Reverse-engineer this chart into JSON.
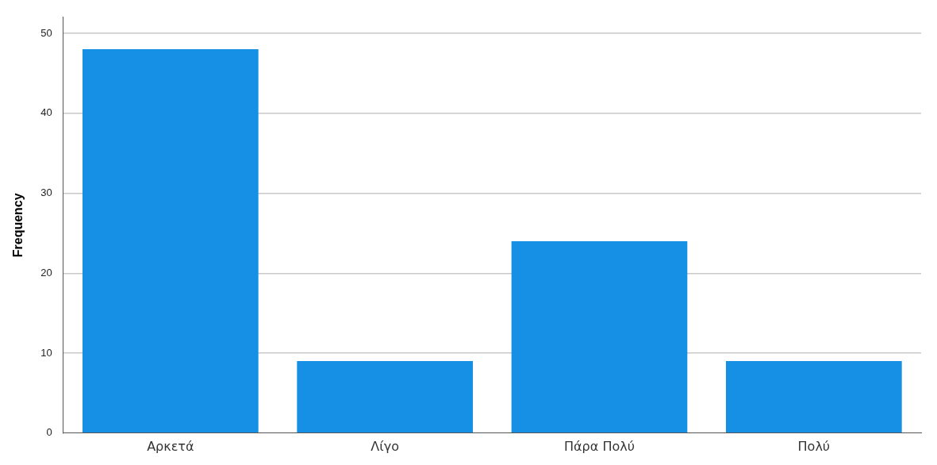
{
  "chart_data": {
    "type": "bar",
    "ylabel": "Frequency",
    "categories": [
      "Αρκετά",
      "Λίγο",
      "Πάρα Πολύ",
      "Πολύ"
    ],
    "values": [
      48,
      9,
      24,
      9
    ],
    "color": "#1590e4",
    "ylim": [
      0,
      52
    ],
    "yticks": [
      0,
      10,
      20,
      30,
      40,
      50
    ],
    "grid": "y"
  }
}
